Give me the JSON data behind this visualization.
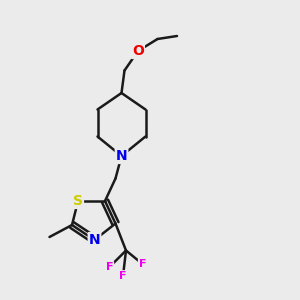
{
  "background_color": "#ebebeb",
  "bond_color": "#1a1a1a",
  "bond_width": 1.8,
  "atom_colors": {
    "N": "#0000ee",
    "O": "#ee0000",
    "S": "#cccc00",
    "F": "#ee00ee",
    "C": "#1a1a1a"
  },
  "font_size_atom": 9,
  "title": ""
}
